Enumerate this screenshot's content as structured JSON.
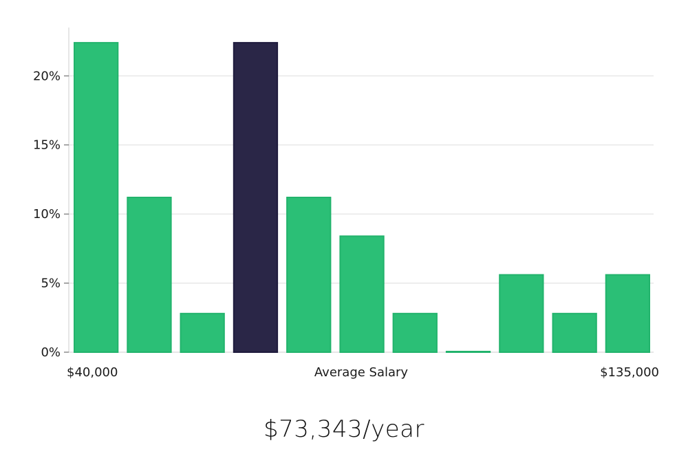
{
  "chart_data": {
    "type": "bar",
    "xlabel": "Average Salary",
    "x_min_label": "$40,000",
    "x_max_label": "$135,000",
    "values": [
      22.4,
      11.2,
      2.8,
      22.4,
      11.2,
      8.4,
      2.8,
      0.0,
      5.6,
      2.8,
      5.6
    ],
    "highlight_index": 3,
    "ylim": [
      0,
      23.5
    ],
    "yticks": [
      0,
      5,
      10,
      15,
      20
    ],
    "ytick_labels": [
      "0%",
      "5%",
      "10%",
      "15%",
      "20%"
    ],
    "grid": true,
    "colors": {
      "bar": "#2bbf76",
      "bar_stroke": "#22b36c",
      "highlight": "#2a2647",
      "grid": "#dddddd",
      "axis": "#cccccc"
    }
  },
  "summary": "$73,343/year"
}
